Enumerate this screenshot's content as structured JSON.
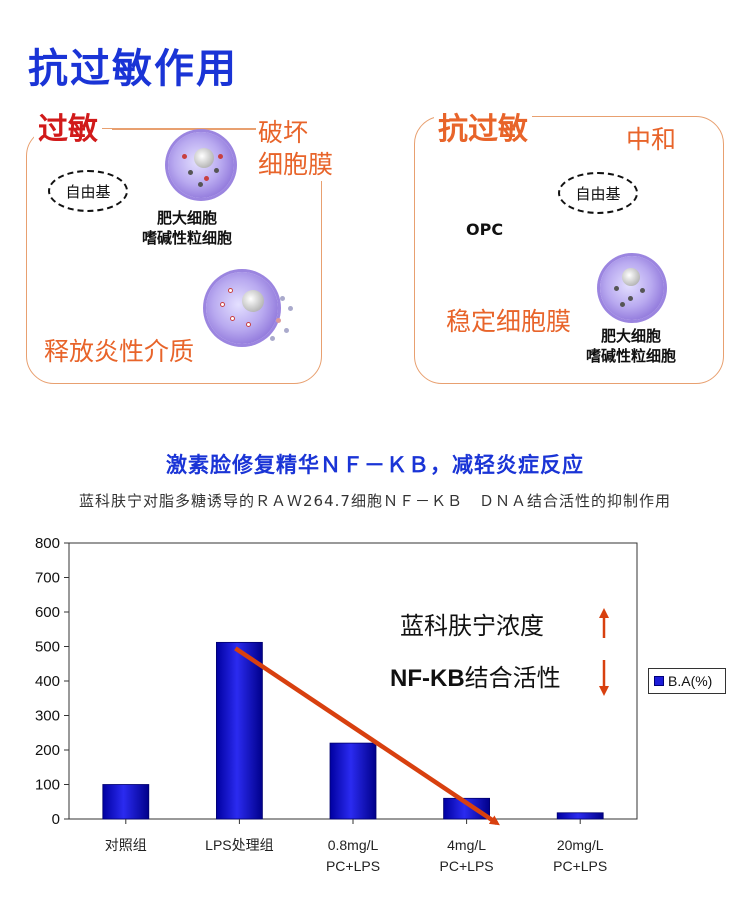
{
  "header": {
    "title": "抗过敏作用"
  },
  "panel_left": {
    "label": "过敏",
    "damage_text": "破坏\n细胞膜",
    "free_radical": "自由基",
    "cell_names": "肥大细胞\n嗜碱性粒细胞",
    "release_text": "释放炎性介质"
  },
  "panel_right": {
    "label": "抗过敏",
    "neutralize_text": "中和",
    "free_radical": "自由基",
    "opc": "OPC",
    "stabilize_text": "稳定细胞膜",
    "cell_names": "肥大细胞\n嗜碱性粒细胞"
  },
  "section": {
    "title": "激素脸修复精华ＮＦ－ＫＢ，减轻炎症反应",
    "description": "蓝科肤宁对脂多糖诱导的ＲＡＷ264.7细胞ＮＦ－ＫＢ　ＤＮＡ结合活性的抑制作用"
  },
  "chart_data": {
    "type": "bar",
    "categories": [
      "对照组",
      "LPS处理组",
      "0.8mg/L\nPC+LPS",
      "4mg/L\nPC+LPS",
      "20mg/L\nPC+LPS"
    ],
    "series": [
      {
        "name": "B.A(%)",
        "values": [
          100,
          512,
          220,
          60,
          18
        ],
        "color": "#1b1bd8"
      }
    ],
    "ylim": [
      0,
      800
    ],
    "yticks": [
      0,
      100,
      200,
      300,
      400,
      500,
      600,
      700,
      800
    ],
    "grid": false,
    "legend": "right",
    "annotations": [
      {
        "text": "蓝科肤宁浓度",
        "arrow": "up"
      },
      {
        "text_bold": "NF-KB",
        "text": "结合活性",
        "arrow": "down"
      }
    ],
    "trend_arrow_color": "#d8400f"
  }
}
